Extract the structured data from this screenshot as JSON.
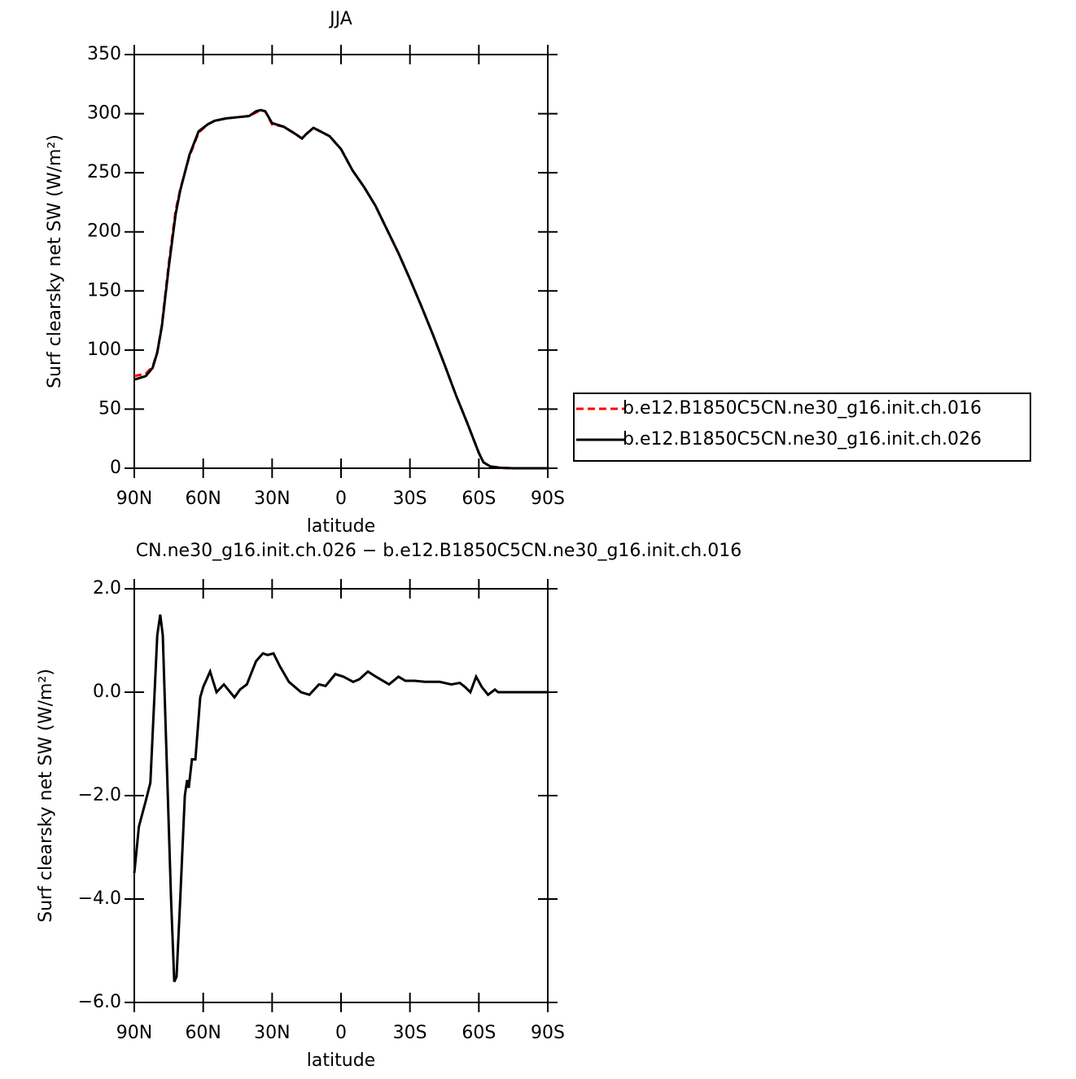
{
  "chart_data": [
    {
      "type": "line",
      "title": "JJA",
      "xlabel": "latitude",
      "ylabel": "Surf clearsky net SW (W/m²)",
      "x": [
        90,
        85,
        82,
        80,
        78,
        75,
        72,
        70,
        66,
        62,
        58,
        55,
        50,
        45,
        40,
        37,
        35,
        33,
        30,
        25,
        20,
        17,
        15,
        12,
        10,
        5,
        0,
        -5,
        -10,
        -15,
        -20,
        -25,
        -30,
        -35,
        -40,
        -45,
        -50,
        -55,
        -60,
        -62,
        -65,
        -70,
        -75,
        -80,
        -85,
        -90
      ],
      "series": [
        {
          "name": "b.e12.B1850C5CN.ne30_g16.init.ch.016",
          "color": "#ff0000",
          "dash": true,
          "values": [
            78,
            80,
            86,
            98,
            121,
            173,
            218,
            236,
            264,
            284,
            291,
            294,
            296,
            297,
            298,
            301,
            303,
            302,
            291,
            289,
            283,
            279,
            283,
            288,
            286,
            281,
            270,
            252,
            238,
            222,
            202,
            182,
            160,
            137,
            113,
            88,
            62,
            38,
            13,
            5,
            1.5,
            0.3,
            0,
            0,
            0,
            0
          ]
        },
        {
          "name": "b.e12.B1850C5CN.ne30_g16.init.ch.026",
          "color": "#000000",
          "dash": false,
          "values": [
            75,
            78,
            85,
            98,
            120,
            170,
            215,
            235,
            265,
            285,
            291,
            294,
            296,
            297,
            298,
            302,
            303,
            302,
            292,
            289,
            283,
            279,
            283,
            288,
            286,
            281,
            270,
            252,
            238,
            222,
            202,
            182,
            160,
            137,
            113,
            88,
            62,
            38,
            13,
            5,
            1.5,
            0.3,
            0,
            0,
            0,
            0
          ]
        }
      ],
      "xlim": [
        90,
        -90
      ],
      "xticks": [
        {
          "value": 90,
          "label": "90N"
        },
        {
          "value": 60,
          "label": "60N"
        },
        {
          "value": 30,
          "label": "30N"
        },
        0,
        {
          "value": -30,
          "label": "30S"
        },
        {
          "value": -60,
          "label": "60S"
        },
        {
          "value": -90,
          "label": "90S"
        }
      ],
      "ylim": [
        0,
        350
      ],
      "yticks": [
        0,
        50,
        100,
        150,
        200,
        250,
        300,
        350
      ],
      "legend": "right"
    },
    {
      "type": "line",
      "title": "CN.ne30_g16.init.ch.026 − b.e12.B1850C5CN.ne30_g16.init.ch.016",
      "xlabel": "latitude",
      "ylabel": "Surf clearsky net SW (W/m²)",
      "x": [
        90,
        88,
        85,
        83,
        80,
        78.7,
        77.6,
        74,
        72.6,
        71.6,
        70,
        68,
        67,
        66.3,
        64.9,
        63.4,
        61.3,
        60,
        57,
        54.2,
        51,
        46.4,
        44,
        41,
        37,
        34,
        32,
        29.4,
        26.6,
        22.7,
        17.4,
        13.8,
        9.6,
        6.7,
        2.5,
        -1,
        -5.3,
        -8,
        -11.7,
        -15.2,
        -20.9,
        -25,
        -28,
        -32,
        -36.5,
        -42.9,
        -48,
        -51.7,
        -54,
        -56.3,
        -58.8,
        -61.3,
        -64,
        -67,
        -68.4,
        -90
      ],
      "series": [
        {
          "color": "#000000",
          "dash": false,
          "values": [
            -3.5,
            -2.6,
            -2.1,
            -1.75,
            1.1,
            1.5,
            1.1,
            -4,
            -5.6,
            -5.5,
            -4,
            -2,
            -1.7,
            -1.85,
            -1.3,
            -1.3,
            -0.1,
            0.1,
            0.4,
            0,
            0.15,
            -0.1,
            0.05,
            0.15,
            0.6,
            0.75,
            0.72,
            0.75,
            0.5,
            0.2,
            0,
            -0.05,
            0.15,
            0.12,
            0.35,
            0.3,
            0.2,
            0.25,
            0.4,
            0.3,
            0.15,
            0.3,
            0.22,
            0.22,
            0.2,
            0.2,
            0.15,
            0.18,
            0.1,
            0,
            0.3,
            0.1,
            -0.05,
            0.05,
            0,
            0
          ]
        }
      ],
      "xlim": [
        90,
        -90
      ],
      "xticks": [
        {
          "value": 90,
          "label": "90N"
        },
        {
          "value": 60,
          "label": "60N"
        },
        {
          "value": 30,
          "label": "30N"
        },
        0,
        {
          "value": -30,
          "label": "30S"
        },
        {
          "value": -60,
          "label": "60S"
        },
        {
          "value": -90,
          "label": "90S"
        }
      ],
      "ylim": [
        -6,
        2
      ],
      "yticks": [
        {
          "value": -6,
          "label": "−6.0"
        },
        {
          "value": -4,
          "label": "−4.0"
        },
        {
          "value": -2,
          "label": "−2.0"
        },
        {
          "value": 0,
          "label": "0.0"
        },
        {
          "value": 2,
          "label": "2.0"
        }
      ]
    }
  ]
}
